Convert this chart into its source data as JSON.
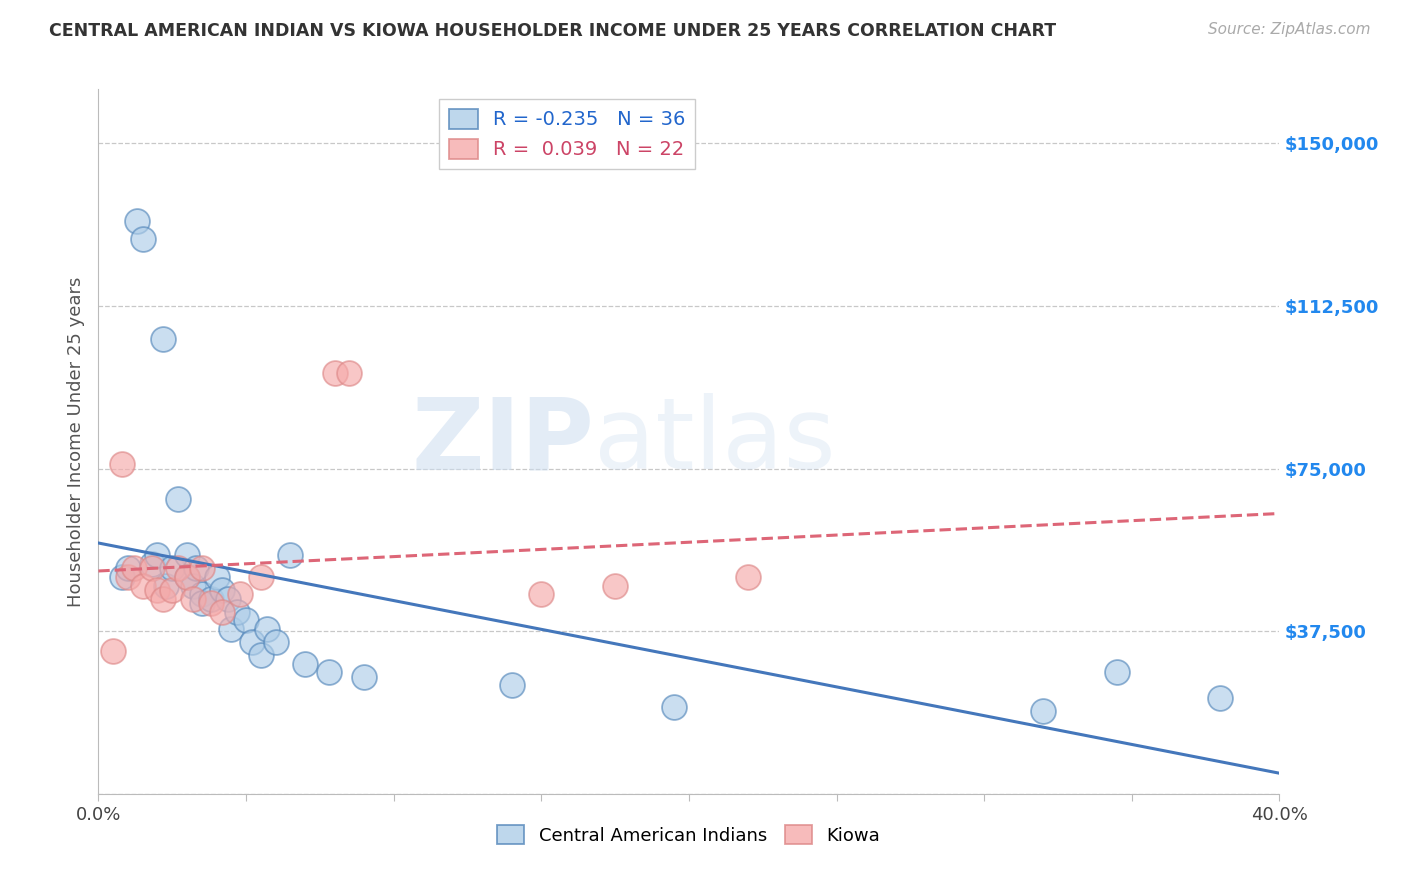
{
  "title": "CENTRAL AMERICAN INDIAN VS KIOWA HOUSEHOLDER INCOME UNDER 25 YEARS CORRELATION CHART",
  "source": "Source: ZipAtlas.com",
  "ylabel": "Householder Income Under 25 years",
  "xlim": [
    0.0,
    0.4
  ],
  "ylim": [
    0,
    162500
  ],
  "yticks": [
    0,
    37500,
    75000,
    112500,
    150000
  ],
  "ytick_labels": [
    "",
    "$37,500",
    "$75,000",
    "$112,500",
    "$150,000"
  ],
  "xticks": [
    0.0,
    0.05,
    0.1,
    0.15,
    0.2,
    0.25,
    0.3,
    0.35,
    0.4
  ],
  "grid_color": "#c8c8c8",
  "background_color": "#ffffff",
  "blue_fill": "#aecde8",
  "pink_fill": "#f5aaaa",
  "blue_edge": "#5588bb",
  "pink_edge": "#dd8888",
  "blue_line": "#4477bb",
  "pink_line": "#dd6677",
  "legend_R_blue": "-0.235",
  "legend_N_blue": "36",
  "legend_R_pink": "0.039",
  "legend_N_pink": "22",
  "watermark_zip": "ZIP",
  "watermark_atlas": "atlas",
  "blue_x": [
    0.008,
    0.01,
    0.013,
    0.015,
    0.018,
    0.02,
    0.022,
    0.023,
    0.025,
    0.027,
    0.03,
    0.03,
    0.032,
    0.033,
    0.035,
    0.035,
    0.038,
    0.04,
    0.042,
    0.044,
    0.045,
    0.047,
    0.05,
    0.052,
    0.055,
    0.057,
    0.06,
    0.065,
    0.07,
    0.078,
    0.09,
    0.14,
    0.195,
    0.32,
    0.345,
    0.38
  ],
  "blue_y": [
    50000,
    52000,
    132000,
    128000,
    53000,
    55000,
    105000,
    48000,
    52000,
    68000,
    55000,
    50000,
    48000,
    52000,
    46000,
    44000,
    45000,
    50000,
    47000,
    45000,
    38000,
    42000,
    40000,
    35000,
    32000,
    38000,
    35000,
    55000,
    30000,
    28000,
    27000,
    25000,
    20000,
    19000,
    28000,
    22000
  ],
  "pink_x": [
    0.005,
    0.008,
    0.01,
    0.012,
    0.015,
    0.018,
    0.02,
    0.022,
    0.025,
    0.027,
    0.03,
    0.032,
    0.035,
    0.038,
    0.042,
    0.048,
    0.055,
    0.08,
    0.085,
    0.15,
    0.175,
    0.22
  ],
  "pink_y": [
    33000,
    76000,
    50000,
    52000,
    48000,
    52000,
    47000,
    45000,
    47000,
    52000,
    50000,
    45000,
    52000,
    44000,
    42000,
    46000,
    50000,
    97000,
    97000,
    46000,
    48000,
    50000
  ]
}
